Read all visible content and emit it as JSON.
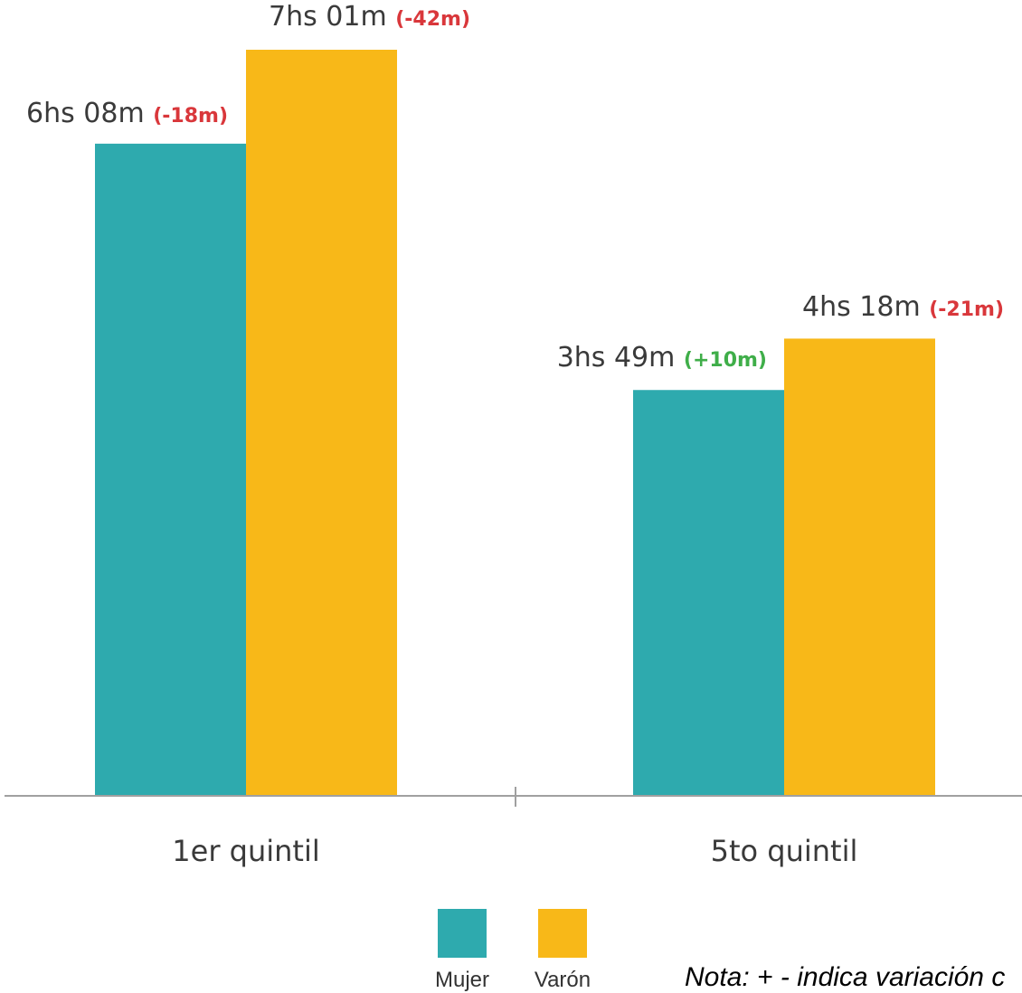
{
  "chart_data": {
    "type": "bar",
    "categories": [
      "1er quintil",
      "5to quintil"
    ],
    "series": [
      {
        "name": "Mujer",
        "color": "#2eaaae",
        "values": [
          368,
          229
        ],
        "labels": [
          "6hs 08m",
          "3hs 49m"
        ],
        "changes": [
          "(-18m)",
          "(+10m)"
        ]
      },
      {
        "name": "Varón",
        "color": "#f8b818",
        "values": [
          421,
          258
        ],
        "labels": [
          "7hs 01m",
          "4hs 18m"
        ],
        "changes": [
          "(-42m)",
          "(-21m)"
        ]
      }
    ],
    "ylim": [
      0,
      460
    ],
    "negative_color": "#d9373b",
    "positive_color": "#3fae49"
  },
  "note": "Nota: + - indica variación c"
}
